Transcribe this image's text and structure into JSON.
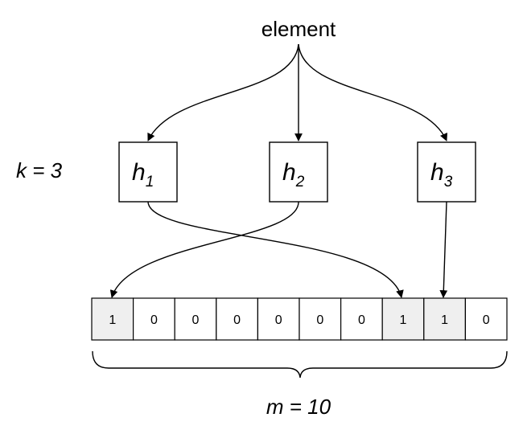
{
  "element_label": "element",
  "k_label": "k = 3",
  "m_label": "m = 10",
  "hash_functions": [
    {
      "name": "h",
      "subscript": "1"
    },
    {
      "name": "h",
      "subscript": "2"
    },
    {
      "name": "h",
      "subscript": "3"
    }
  ],
  "bit_array": [
    "1",
    "0",
    "0",
    "0",
    "0",
    "0",
    "0",
    "1",
    "1",
    "0"
  ],
  "set_bit_indices": [
    0,
    7,
    8
  ],
  "hash_targets": [
    7,
    0,
    8
  ],
  "colors": {
    "set_cell_fill": "#efefef",
    "unset_cell_fill": "#ffffff",
    "stroke": "#000000"
  }
}
